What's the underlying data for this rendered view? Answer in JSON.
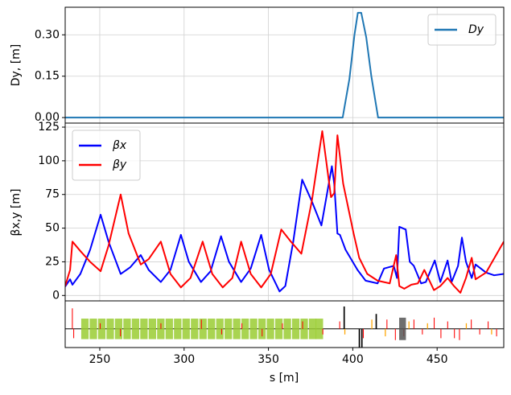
{
  "chart_data": [
    {
      "type": "line",
      "ylabel": "Dy, [m]",
      "grid": true,
      "legend": "upper right",
      "xlim": [
        229.5,
        489.5
      ],
      "xticks": [
        250,
        300,
        350,
        400,
        450
      ],
      "ylim": [
        -0.02,
        0.4
      ],
      "yticks": [
        {
          "value": 0,
          "label": "0.00"
        },
        {
          "value": 0.15,
          "label": "0.15"
        },
        {
          "value": 0.3,
          "label": "0.30"
        }
      ],
      "series": [
        {
          "name": "Dy",
          "color": "#1f77b4",
          "x": [
            229.5,
            394,
            398,
            401,
            403,
            405,
            408,
            411,
            415,
            489.5
          ],
          "values": [
            0,
            0,
            0.14,
            0.3,
            0.38,
            0.38,
            0.29,
            0.15,
            0,
            0
          ]
        }
      ]
    },
    {
      "type": "line",
      "ylabel": "βx,y [m]",
      "grid": true,
      "legend": "upper left",
      "xlim": [
        229.5,
        489.5
      ],
      "xticks": [
        250,
        300,
        350,
        400,
        450
      ],
      "ylim": [
        -4,
        128
      ],
      "yticks": [
        0,
        25,
        50,
        75,
        100,
        125
      ],
      "series": [
        {
          "name": "βx",
          "color": "#0000ff",
          "x": [
            229.5,
            232.4,
            233.8,
            238.5,
            244.3,
            250.5,
            255.2,
            262.4,
            268.1,
            274.3,
            279,
            286.2,
            291.9,
            298.1,
            302.8,
            310,
            315.7,
            321.9,
            326.6,
            333.8,
            339.5,
            345.7,
            350.4,
            356.6,
            360,
            364.7,
            370,
            375.7,
            381.4,
            387.6,
            389,
            390.9,
            392.4,
            395.7,
            402.8,
            407.6,
            414.7,
            418.5,
            424.3,
            426.2,
            427.6,
            431.4,
            433.8,
            436.2,
            440.5,
            443.3,
            448.6,
            451.9,
            456.2,
            458.6,
            462.4,
            464.7,
            467.1,
            470.5,
            472.8,
            479,
            483.8,
            489.5
          ],
          "values": [
            6.6,
            12,
            8,
            16,
            34,
            60,
            40,
            16,
            21,
            30,
            19,
            10,
            19,
            45,
            25,
            10,
            18,
            44,
            25,
            10,
            20,
            45,
            19,
            3,
            7,
            40,
            86,
            70,
            52,
            96,
            83,
            46,
            45,
            34,
            19,
            11,
            9,
            20,
            22,
            13,
            51,
            49,
            25,
            22,
            9,
            10,
            26,
            10,
            26,
            10,
            22,
            43,
            25,
            13,
            23,
            17,
            15,
            16
          ]
        },
        {
          "name": "βy",
          "color": "#ff0000",
          "x": [
            229.5,
            232.4,
            233.8,
            238.5,
            244.3,
            250.5,
            255.2,
            262.4,
            267.1,
            274.3,
            279,
            286.2,
            291.9,
            298.1,
            303.8,
            311,
            316.7,
            322.9,
            328.6,
            333.8,
            339.5,
            345.7,
            351.4,
            357.6,
            363.3,
            369.5,
            375.7,
            381.9,
            387.1,
            389,
            390.9,
            394.3,
            400.5,
            403.8,
            408.6,
            414.7,
            421.9,
            425.7,
            427.6,
            430.5,
            434.7,
            438.6,
            442.4,
            448.1,
            451.9,
            456.2,
            460,
            463.8,
            467.1,
            470.5,
            472.8,
            479,
            489.5
          ],
          "values": [
            7,
            19,
            40,
            33,
            25,
            18,
            37,
            75,
            46,
            23,
            27,
            40,
            16,
            6,
            13,
            40,
            16,
            6,
            13,
            40,
            16,
            6,
            16,
            49,
            40,
            31,
            70,
            122,
            73,
            76,
            119,
            83,
            46,
            28,
            16,
            11,
            9,
            30,
            7,
            5,
            8,
            9,
            19,
            4,
            7,
            13,
            7,
            2,
            13,
            28,
            12,
            17,
            40
          ]
        }
      ]
    },
    {
      "type": "lattice",
      "xlabel": "s [m]",
      "xlim": [
        229.5,
        489.5
      ],
      "xticks": [
        250,
        300,
        350,
        400,
        450
      ],
      "ylim": [
        -1,
        1.5
      ],
      "series": [
        {
          "color": "#9acd32",
          "symmetric": true,
          "length": 4.4,
          "s": [
            239,
            244,
            249,
            254,
            259,
            264,
            269,
            274,
            279,
            284,
            289,
            294,
            299,
            304,
            309,
            314,
            319,
            324,
            329,
            334,
            339,
            344,
            349,
            354,
            359,
            364,
            369,
            374,
            378
          ],
          "values": [
            0.55,
            0.55,
            0.55,
            0.55,
            0.55,
            0.55,
            0.55,
            0.55,
            0.55,
            0.55,
            0.55,
            0.55,
            0.55,
            0.55,
            0.55,
            0.55,
            0.55,
            0.55,
            0.55,
            0.55,
            0.55,
            0.55,
            0.55,
            0.55,
            0.55,
            0.55,
            0.55,
            0.55,
            0.55
          ]
        },
        {
          "color": "#ff0000",
          "symmetric": false,
          "length": 0.5,
          "s": [
            233.5,
            234.3,
            250,
            262,
            286,
            310,
            322,
            334,
            346,
            358,
            370,
            382,
            392,
            406,
            420,
            425,
            430,
            436,
            441,
            448,
            452,
            456,
            460,
            463,
            470,
            475,
            480,
            485
          ],
          "values": [
            1.1,
            -0.5,
            0.3,
            -0.4,
            0.3,
            0.5,
            -0.3,
            0.3,
            -0.4,
            0.3,
            0.4,
            -0.3,
            0.4,
            -0.5,
            0.5,
            -0.6,
            -0.4,
            0.5,
            -0.3,
            0.6,
            -0.5,
            0.4,
            -0.5,
            -0.6,
            0.5,
            -0.3,
            0.4,
            -0.4
          ]
        },
        {
          "color": "#ffa500",
          "symmetric": false,
          "length": 0.6,
          "s": [
            395,
            411,
            419,
            433,
            444,
            467,
            482
          ],
          "values": [
            -0.3,
            0.5,
            -0.4,
            0.4,
            0.3,
            0.3,
            -0.3
          ]
        },
        {
          "color": "#000000",
          "symmetric": false,
          "length": 0.8,
          "s": [
            394.5,
            403.5,
            405,
            413.5
          ],
          "values": [
            1.2,
            -1,
            -1,
            0.8
          ]
        },
        {
          "color": "#555555",
          "symmetric": true,
          "length": 4,
          "s": [
            427.5
          ],
          "values": [
            0.6
          ]
        }
      ]
    }
  ]
}
